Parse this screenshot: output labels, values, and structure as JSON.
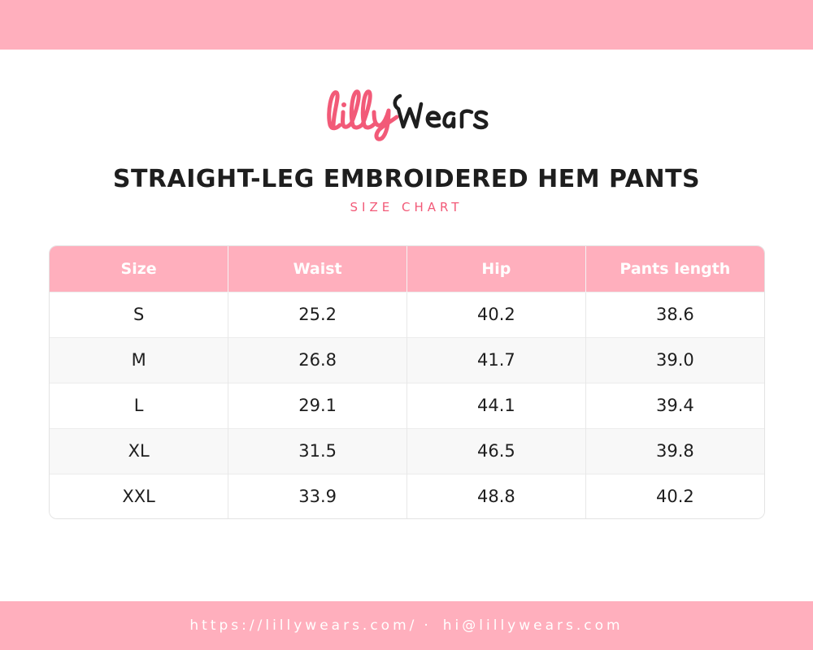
{
  "brand": {
    "logo_text": "lillyWears",
    "logo_accent_color": "#f25a78",
    "logo_dark_color": "#1e1e1e",
    "band_color": "#ffafbd"
  },
  "header": {
    "title": "STRAIGHT-LEG EMBROIDERED HEM PANTS",
    "subtitle": "SIZE CHART"
  },
  "size_table": {
    "columns": [
      "Size",
      "Waist",
      "Hip",
      "Pants length"
    ],
    "rows": [
      [
        "S",
        "25.2",
        "40.2",
        "38.6"
      ],
      [
        "M",
        "26.8",
        "41.7",
        "39.0"
      ],
      [
        "L",
        "29.1",
        "44.1",
        "39.4"
      ],
      [
        "XL",
        "31.5",
        "46.5",
        "39.8"
      ],
      [
        "XXL",
        "33.9",
        "48.8",
        "40.2"
      ]
    ]
  },
  "footer": {
    "website": "https://lillywears.com/",
    "separator": "·",
    "email": "hi@lillywears.com"
  }
}
